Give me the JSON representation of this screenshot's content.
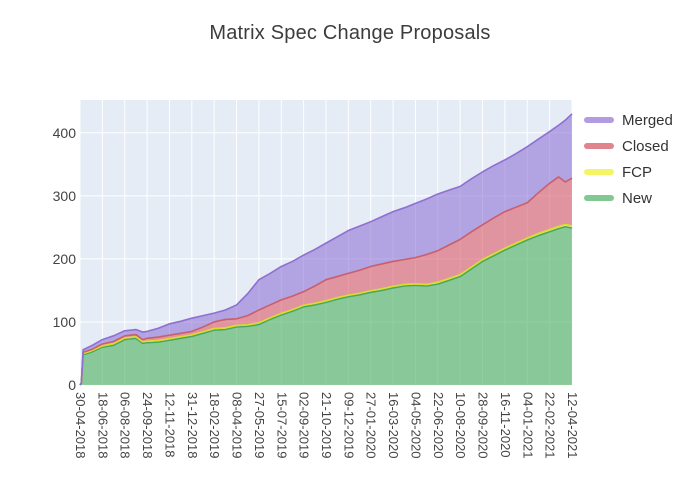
{
  "title": "Matrix Spec Change Proposals",
  "colors": {
    "page_bg": "#ffffff",
    "plot_bg": "#e5ecf6",
    "grid": "#ffffff",
    "tick_text": "#444444",
    "title_text": "#3d3d3d"
  },
  "chart_data": {
    "type": "area",
    "stacked": true,
    "title": "Matrix Spec Change Proposals",
    "grid": true,
    "legend_position": "right-top",
    "y_axis": {
      "ticks": [
        0,
        100,
        200,
        300,
        400
      ],
      "range": [
        0,
        452
      ]
    },
    "x_axis": {
      "tick_labels": [
        "30-04-2018",
        "18-06-2018",
        "06-08-2018",
        "24-09-2018",
        "12-11-2018",
        "31-12-2018",
        "18-02-2019",
        "08-04-2019",
        "27-05-2019",
        "15-07-2019",
        "02-09-2019",
        "21-10-2019",
        "09-12-2019",
        "27-01-2020",
        "16-03-2020",
        "04-05-2020",
        "22-06-2020",
        "10-08-2020",
        "28-09-2020",
        "16-11-2020",
        "04-01-2021",
        "22-02-2021",
        "12-04-2021"
      ],
      "tick_interval_days": 49
    },
    "x": [
      0,
      0.06,
      0.14,
      0.5,
      1,
      1.5,
      2,
      2.5,
      2.8,
      3,
      3.5,
      4,
      4.5,
      5,
      5.5,
      6,
      6.5,
      7,
      7.5,
      8,
      8.5,
      9,
      9.5,
      10,
      10.5,
      11,
      11.5,
      12,
      12.5,
      13,
      13.5,
      14,
      14.5,
      15,
      15.5,
      16,
      16.5,
      17,
      17.5,
      18,
      18.5,
      19,
      19.5,
      20,
      20.5,
      21,
      21.4,
      21.7,
      22
    ],
    "series": [
      {
        "name": "New",
        "line": "#4aa85e",
        "fill": "rgba(81,177,95,0.62)",
        "legend_swatch": "#83c892",
        "values": [
          0,
          2,
          48,
          52,
          60,
          63,
          72,
          74,
          66,
          67,
          68,
          71,
          74,
          77,
          82,
          87,
          88,
          92,
          93,
          96,
          104,
          111,
          117,
          124,
          127,
          131,
          136,
          140,
          143,
          147,
          150,
          154,
          157,
          158,
          157,
          160,
          166,
          172,
          184,
          196,
          205,
          214,
          222,
          230,
          237,
          243,
          248,
          251,
          249
        ]
      },
      {
        "name": "FCP",
        "line": "#dedb2f",
        "fill": "rgba(240,238,80,0.75)",
        "legend_swatch": "#f5f464",
        "values": [
          0,
          0.5,
          2,
          2,
          2,
          2.5,
          2.5,
          2.5,
          2.5,
          2.5,
          2.5,
          2.5,
          2.5,
          2.5,
          2.5,
          2.5,
          2.5,
          2.5,
          2.5,
          2.5,
          2.5,
          2.5,
          2.5,
          2.5,
          2.5,
          2.5,
          2.5,
          2.5,
          2.5,
          2.5,
          2.5,
          2.5,
          2.5,
          2.5,
          2.5,
          3,
          3,
          3,
          3,
          3,
          3,
          3,
          3,
          3,
          3.5,
          3.5,
          3.5,
          3.5,
          3.5
        ]
      },
      {
        "name": "Closed",
        "line": "#c95f6c",
        "fill": "rgba(219,90,104,0.6)",
        "legend_swatch": "#e0848d",
        "values": [
          0,
          0.5,
          2,
          2,
          3,
          3.5,
          3.5,
          3.5,
          3.5,
          4.5,
          5.5,
          5.5,
          5.5,
          5.5,
          7.5,
          10.5,
          13.5,
          10.5,
          14.5,
          20.5,
          20.5,
          21.5,
          21.5,
          21.5,
          27.5,
          33.5,
          33.5,
          34.5,
          36.5,
          38.5,
          39.5,
          39.5,
          39.5,
          41.5,
          47.5,
          50,
          53,
          56,
          56,
          55,
          57,
          58,
          57,
          56,
          64.5,
          73.5,
          78.5,
          67.5,
          75.5
        ]
      },
      {
        "name": "Merged",
        "line": "#8f6fd1",
        "fill": "rgba(136,104,209,0.55)",
        "legend_swatch": "#b29ce1",
        "values": [
          0,
          1,
          4,
          6,
          7,
          9,
          8,
          8,
          12,
          11,
          14,
          18,
          19,
          21,
          18,
          14,
          15,
          22,
          35,
          48,
          50,
          53,
          55,
          58,
          58,
          58,
          63,
          68,
          70,
          71,
          75,
          79,
          82,
          86,
          88,
          90,
          87,
          84,
          84,
          84,
          83,
          82,
          85,
          89,
          85,
          82,
          82,
          98,
          102
        ]
      }
    ],
    "legend_order": [
      "Merged",
      "Closed",
      "FCP",
      "New"
    ]
  }
}
